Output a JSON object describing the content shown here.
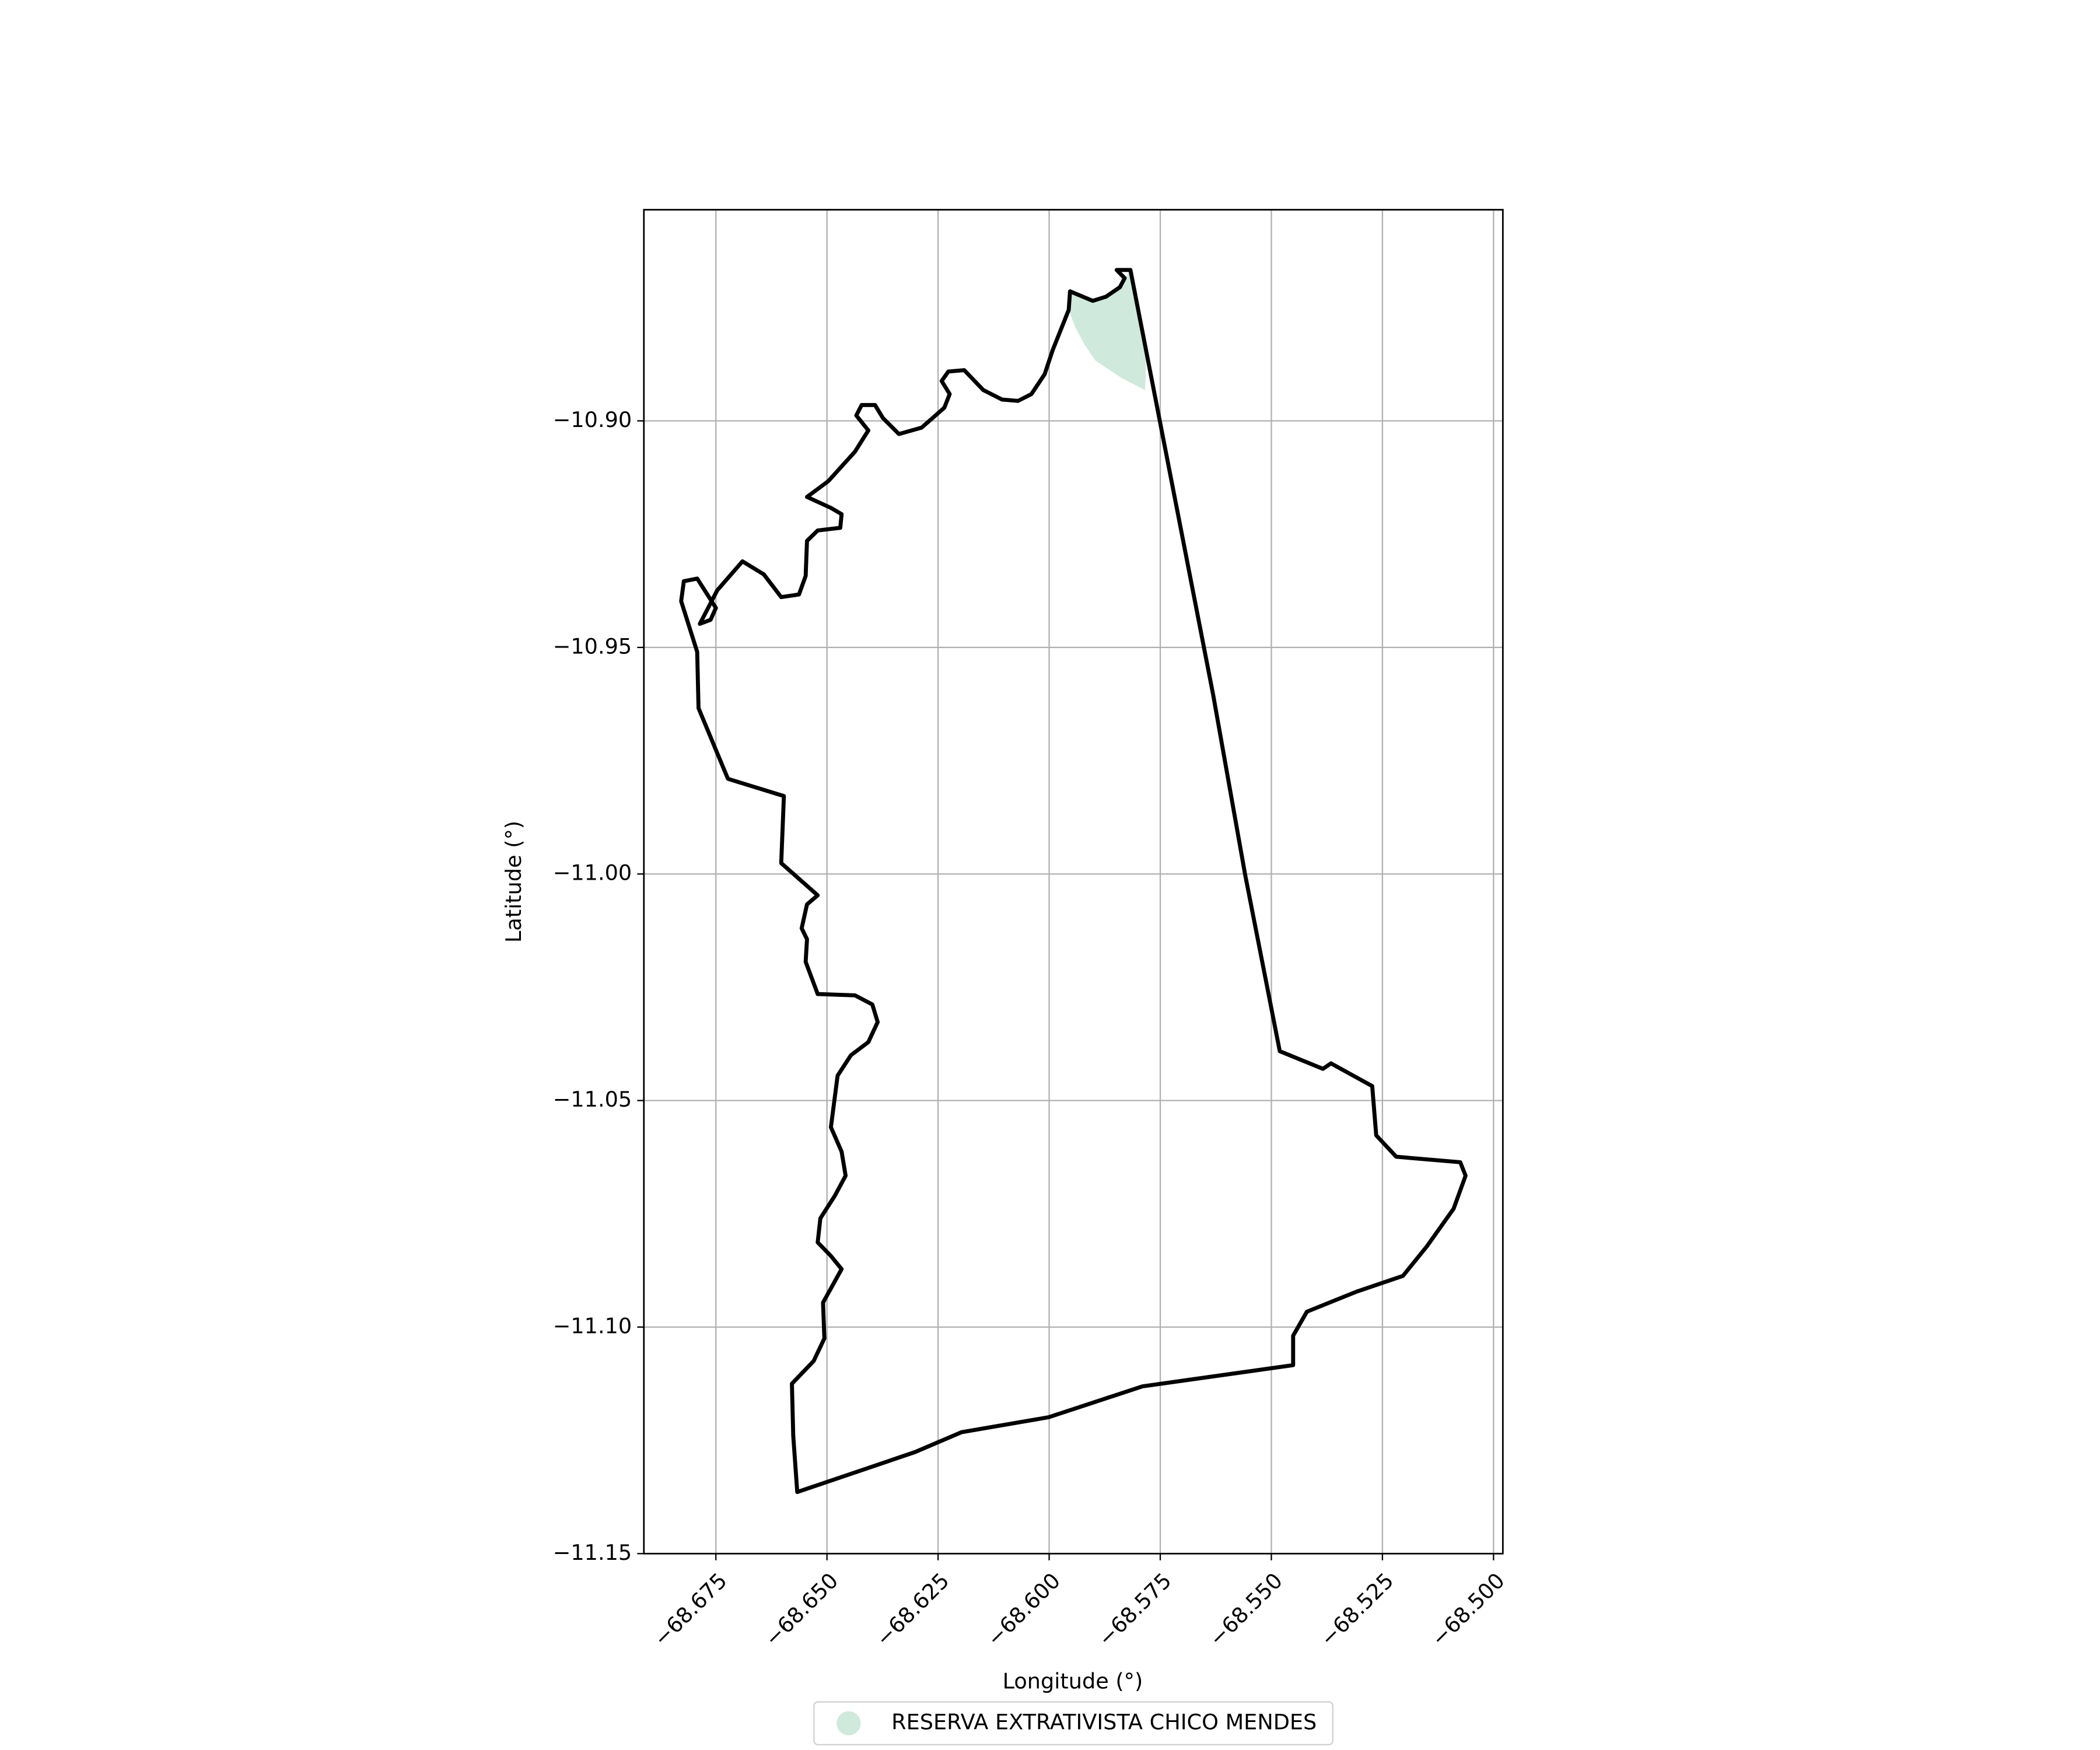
{
  "chart_data": {
    "type": "map",
    "xlabel": "Longitude (°)",
    "ylabel": "Latitude (°)",
    "xlim": [
      -68.6912,
      -68.4979
    ],
    "ylim": [
      -11.15,
      -10.8534
    ],
    "xticks": [
      {
        "value": -68.675,
        "label": "−68.675"
      },
      {
        "value": -68.65,
        "label": "−68.650"
      },
      {
        "value": -68.625,
        "label": "−68.625"
      },
      {
        "value": -68.6,
        "label": "−68.600"
      },
      {
        "value": -68.575,
        "label": "−68.575"
      },
      {
        "value": -68.55,
        "label": "−68.550"
      },
      {
        "value": -68.525,
        "label": "−68.525"
      },
      {
        "value": -68.5,
        "label": "−68.500"
      }
    ],
    "yticks": [
      {
        "value": -10.9,
        "label": "−10.90"
      },
      {
        "value": -10.95,
        "label": "−10.95"
      },
      {
        "value": -11.0,
        "label": "−11.00"
      },
      {
        "value": -11.05,
        "label": "−11.05"
      },
      {
        "value": -11.1,
        "label": "−11.10"
      },
      {
        "value": -11.15,
        "label": "−11.15"
      }
    ],
    "grid": true,
    "legend": "lower center",
    "boundary": {
      "color": "#000000",
      "x": [
        -68.5841,
        -68.5817,
        -68.5751,
        -68.5631,
        -68.5559,
        -68.5481,
        -68.5384,
        -68.5366,
        -68.5273,
        -68.5264,
        -68.5219,
        -68.5075,
        -68.5063,
        -68.509,
        -68.515,
        -68.5204,
        -68.5309,
        -68.542,
        -68.5451,
        -68.5451,
        -68.579,
        -68.6001,
        -68.6197,
        -68.6302,
        -68.6567,
        -68.6576,
        -68.6579,
        -68.653,
        -68.6506,
        -68.6509,
        -68.6467,
        -68.6491,
        -68.6521,
        -68.6515,
        -68.6482,
        -68.6458,
        -68.6467,
        -68.6491,
        -68.6476,
        -68.6446,
        -68.6407,
        -68.6386,
        -68.6398,
        -68.6437,
        -68.6521,
        -68.6548,
        -68.6545,
        -68.6557,
        -68.6545,
        -68.6521,
        -68.6603,
        -68.6597,
        -68.6723,
        -68.6789,
        -68.6792,
        -68.6828,
        -68.6822,
        -68.6792,
        -68.675,
        -68.6762,
        -68.6786,
        -68.6747,
        -68.669,
        -68.6642,
        -68.6603,
        -68.6563,
        -68.6548,
        -68.6545,
        -68.6521,
        -68.647,
        -68.6467,
        -68.6491,
        -68.6545,
        -68.6497,
        -68.6437,
        -68.6407,
        -68.6434,
        -68.6422,
        -68.6392,
        -68.6374,
        -68.6338,
        -68.6287,
        -68.6236,
        -68.6224,
        -68.6242,
        -68.6227,
        -68.6191,
        -68.6148,
        -68.6106,
        -68.607,
        -68.604,
        -68.601,
        -68.5992,
        -68.5956,
        -68.5953,
        -68.5902,
        -68.5872,
        -68.5841,
        -68.583,
        -68.5848
      ],
      "y": [
        -10.8667,
        -10.8667,
        -10.9,
        -10.9604,
        -11.0002,
        -11.0391,
        -11.043,
        -11.0418,
        -11.0468,
        -11.0577,
        -11.0624,
        -11.0636,
        -11.0666,
        -11.0739,
        -11.0822,
        -11.0887,
        -11.0922,
        -11.0966,
        -11.1019,
        -11.1084,
        -11.1131,
        -11.1199,
        -11.1232,
        -11.1276,
        -11.1364,
        -11.124,
        -11.1125,
        -11.1075,
        -11.1025,
        -11.0946,
        -11.0872,
        -11.0843,
        -11.0813,
        -11.076,
        -11.071,
        -11.0666,
        -11.0613,
        -11.0559,
        -11.0445,
        -11.04,
        -11.0371,
        -11.0327,
        -11.0288,
        -11.0268,
        -11.0265,
        -11.0194,
        -11.0144,
        -11.012,
        -11.0067,
        -11.0047,
        -10.9976,
        -10.9828,
        -10.979,
        -10.9634,
        -10.951,
        -10.9398,
        -10.9354,
        -10.9348,
        -10.9413,
        -10.9439,
        -10.9448,
        -10.9374,
        -10.931,
        -10.9339,
        -10.9389,
        -10.9383,
        -10.9342,
        -10.9265,
        -10.9242,
        -10.9236,
        -10.9206,
        -10.9192,
        -10.9168,
        -10.9133,
        -10.9068,
        -10.9021,
        -10.8988,
        -10.8965,
        -10.8965,
        -10.8994,
        -10.9029,
        -10.9015,
        -10.8971,
        -10.8941,
        -10.8912,
        -10.8891,
        -10.8888,
        -10.8932,
        -10.8953,
        -10.8956,
        -10.8941,
        -10.8897,
        -10.8844,
        -10.8755,
        -10.8714,
        -10.8735,
        -10.8726,
        -10.8705,
        -10.8685,
        -10.8667
      ]
    },
    "series": [
      {
        "name": "RESERVA EXTRATIVISTA CHICO MENDES",
        "color": "#cfe9dc",
        "x": [
          -68.5956,
          -68.5953,
          -68.5902,
          -68.5841,
          -68.5817,
          -68.5781,
          -68.5784,
          -68.5836,
          -68.5896,
          -68.592,
          -68.5941
        ],
        "y": [
          -10.8755,
          -10.8714,
          -10.8735,
          -10.8705,
          -10.8667,
          -10.8844,
          -10.8932,
          -10.8906,
          -10.8867,
          -10.8832,
          -10.8794
        ]
      }
    ]
  }
}
